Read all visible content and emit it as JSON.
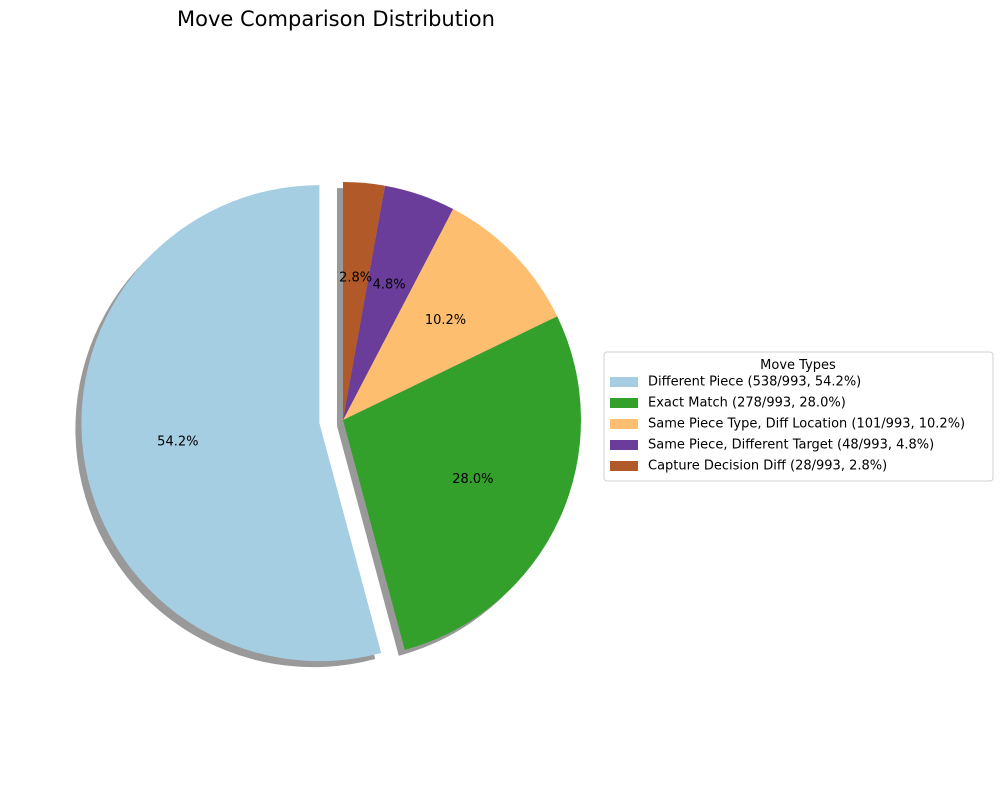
{
  "chart_data": {
    "type": "pie",
    "title": "Move Comparison Distribution",
    "legend_title": "Move Types",
    "legend_position": "right",
    "start_angle_deg": 90,
    "direction": "counterclockwise",
    "shadow": true,
    "slices": [
      {
        "label": "Different Piece",
        "count": 538,
        "total": 993,
        "percent": 54.2,
        "pct_text": "54.2%",
        "legend": "Different Piece (538/993, 54.2%)",
        "color": "#a6cee3",
        "explode": 0.1
      },
      {
        "label": "Exact Match",
        "count": 278,
        "total": 993,
        "percent": 28.0,
        "pct_text": "28.0%",
        "legend": "Exact Match (278/993, 28.0%)",
        "color": "#33a02c",
        "explode": 0
      },
      {
        "label": "Same Piece Type, Diff Location",
        "count": 101,
        "total": 993,
        "percent": 10.2,
        "pct_text": "10.2%",
        "legend": "Same Piece Type, Diff Location (101/993, 10.2%)",
        "color": "#fdbf6f",
        "explode": 0
      },
      {
        "label": "Same Piece, Different Target",
        "count": 48,
        "total": 993,
        "percent": 4.8,
        "pct_text": "4.8%",
        "legend": "Same Piece, Different Target (48/993, 4.8%)",
        "color": "#6a3d9a",
        "explode": 0
      },
      {
        "label": "Capture Decision Diff",
        "count": 28,
        "total": 993,
        "percent": 2.8,
        "pct_text": "2.8%",
        "legend": "Capture Decision Diff (28/993, 2.8%)",
        "color": "#b15928",
        "explode": 0
      }
    ]
  }
}
